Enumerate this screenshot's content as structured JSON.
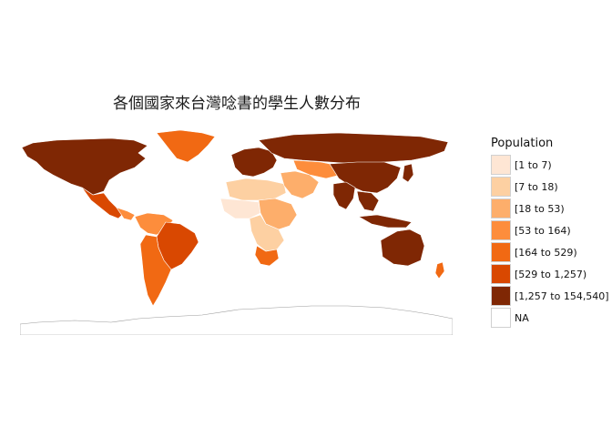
{
  "title": "各個國家來台灣唸書的學生人數分布",
  "legend": {
    "title": "Population",
    "items": [
      {
        "label": "[1 to 7)",
        "color": "#fee6d4"
      },
      {
        "label": "[7 to 18)",
        "color": "#fdd0a2"
      },
      {
        "label": "[18 to 53)",
        "color": "#fdae6b"
      },
      {
        "label": "[53 to 164)",
        "color": "#fd8d3c"
      },
      {
        "label": "[164 to 529)",
        "color": "#f16913"
      },
      {
        "label": "[529 to 1,257)",
        "color": "#d94801"
      },
      {
        "label": "[1,257 to 154,540]",
        "color": "#7f2704"
      },
      {
        "label": "NA",
        "color": "#ffffff"
      }
    ]
  },
  "regions": {
    "north_america": {
      "class": 6
    },
    "greenland": {
      "class": 4
    },
    "mexico": {
      "class": 5
    },
    "central_america": {
      "class": 3
    },
    "south_america_north": {
      "class": 3
    },
    "brazil": {
      "class": 5
    },
    "southern_cone": {
      "class": 4
    },
    "western_europe": {
      "class": 6
    },
    "russia": {
      "class": 6
    },
    "north_africa": {
      "class": 1
    },
    "west_africa": {
      "class": 0
    },
    "east_africa": {
      "class": 2
    },
    "southern_africa": {
      "class": 1
    },
    "south_africa": {
      "class": 4
    },
    "middle_east": {
      "class": 2
    },
    "central_asia": {
      "class": 3
    },
    "china": {
      "class": 6
    },
    "india": {
      "class": 6
    },
    "southeast_asia": {
      "class": 6
    },
    "indonesia": {
      "class": 6
    },
    "japan": {
      "class": 6
    },
    "australia": {
      "class": 6
    },
    "new_zealand": {
      "class": 4
    },
    "antarctica": {
      "class": 7
    }
  }
}
